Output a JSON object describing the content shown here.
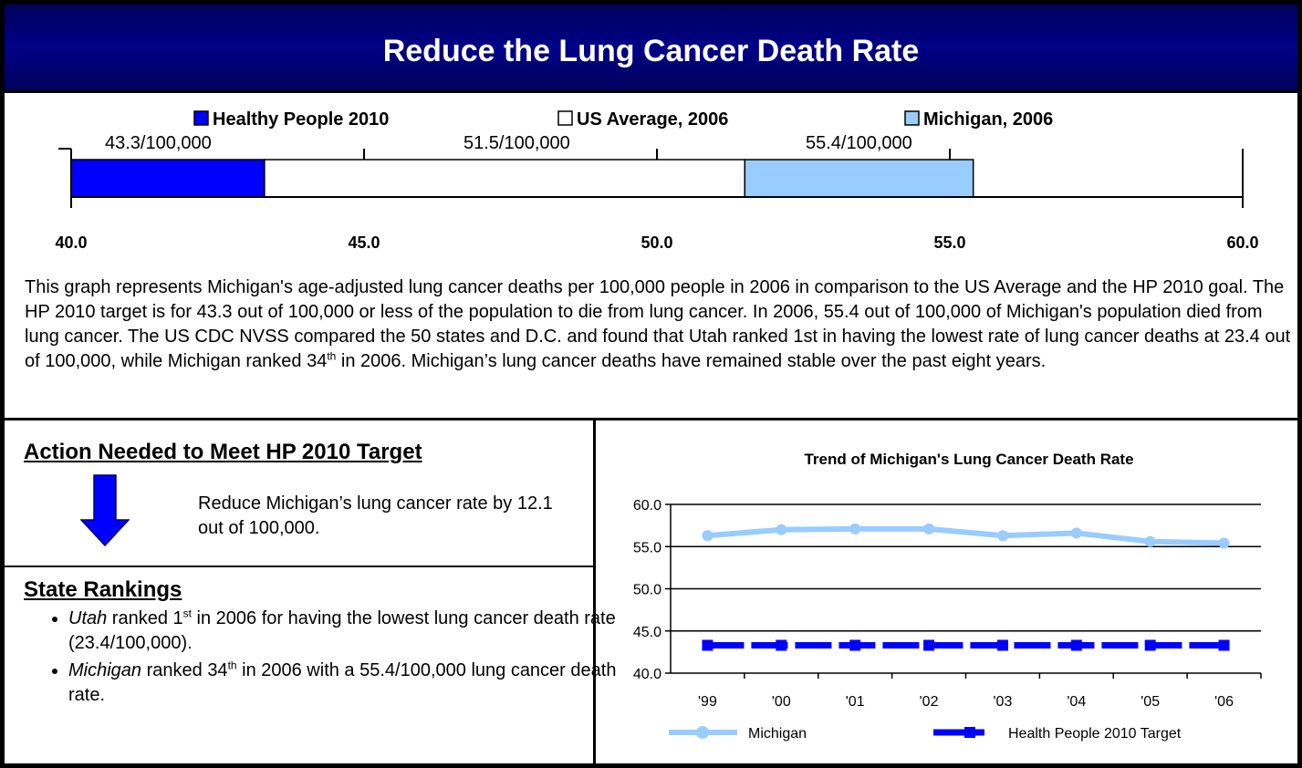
{
  "header": {
    "title": "Reduce the Lung Cancer Death Rate"
  },
  "chart_data": [
    {
      "type": "range_bar",
      "series": [
        {
          "name": "Healthy People 2010",
          "color": "#0000ff",
          "values": [
            43.3
          ],
          "value_labels": [
            "43.3/100,000"
          ]
        },
        {
          "name": "US Average, 2006",
          "color": "#ffffff",
          "values": [
            51.5
          ],
          "value_labels": [
            "51.5/100,000"
          ]
        },
        {
          "name": "Michigan, 2006",
          "color": "#99ccff",
          "values": [
            55.4
          ],
          "value_labels": [
            "55.4/100,000"
          ]
        }
      ],
      "xlim": [
        40,
        60
      ],
      "xticks": [
        {
          "value": 40,
          "label": "40.0"
        },
        {
          "value": 45,
          "label": "45.0"
        },
        {
          "value": 50,
          "label": "50.0"
        },
        {
          "value": 55,
          "label": "55.0"
        },
        {
          "value": 60,
          "label": "60.0"
        }
      ]
    },
    {
      "type": "line",
      "title": "Trend of Michigan's Lung Cancer Death Rate",
      "categories": [
        "'99",
        "'00",
        "'01",
        "'02",
        "'03",
        "'04",
        "'05",
        "'06"
      ],
      "series": [
        {
          "name": "Michigan",
          "color": "#99ccff",
          "values": [
            56.3,
            57.0,
            57.1,
            57.1,
            56.3,
            56.6,
            55.6,
            55.4
          ]
        },
        {
          "name": "Health People 2010 Target",
          "color": "#0000ff",
          "values": [
            43.3,
            43.3,
            43.3,
            43.3,
            43.3,
            43.3,
            43.3,
            43.3
          ]
        }
      ],
      "ylim": [
        40,
        60
      ],
      "yticks": [
        {
          "value": 40,
          "label": "40.0"
        },
        {
          "value": 45,
          "label": "45.0"
        },
        {
          "value": 50,
          "label": "50.0"
        },
        {
          "value": 55,
          "label": "55.0"
        },
        {
          "value": 60,
          "label": "60.0"
        }
      ],
      "grid": true
    }
  ],
  "description": [
    "This graph represents Michigan's age-adjusted lung cancer deaths per 100,000 people in 2006 in comparison to the US Average and the HP 2010 goal.  The HP 2010 target is for 43.3 out of 100,000 or less of the population to die from lung cancer.  In 2006, 55.4 out of 100,000 of Michigan's population died from lung cancer. The US CDC NVSS compared the 50 states and D.C. and found that Utah ranked 1st in having the lowest rate of lung cancer deaths at 23.4 out of 100,000, while Michigan ranked 34",
    "th",
    " in 2006.  Michigan’s lung cancer deaths have remained stable over the past eight years."
  ],
  "action": {
    "title": "Action Needed to Meet HP 2010 Target",
    "text": "Reduce Michigan’s lung cancer rate by 12.1 out of 100,000."
  },
  "rankings": {
    "title": "State Rankings",
    "items": [
      [
        "Utah",
        " ranked 1",
        "st",
        " in 2006 for having the lowest lung cancer death rate (23.4/100,000)."
      ],
      [
        "Michigan",
        " ranked 34",
        "th",
        " in 2006 with a 55.4/100,000 lung cancer death rate."
      ]
    ]
  }
}
